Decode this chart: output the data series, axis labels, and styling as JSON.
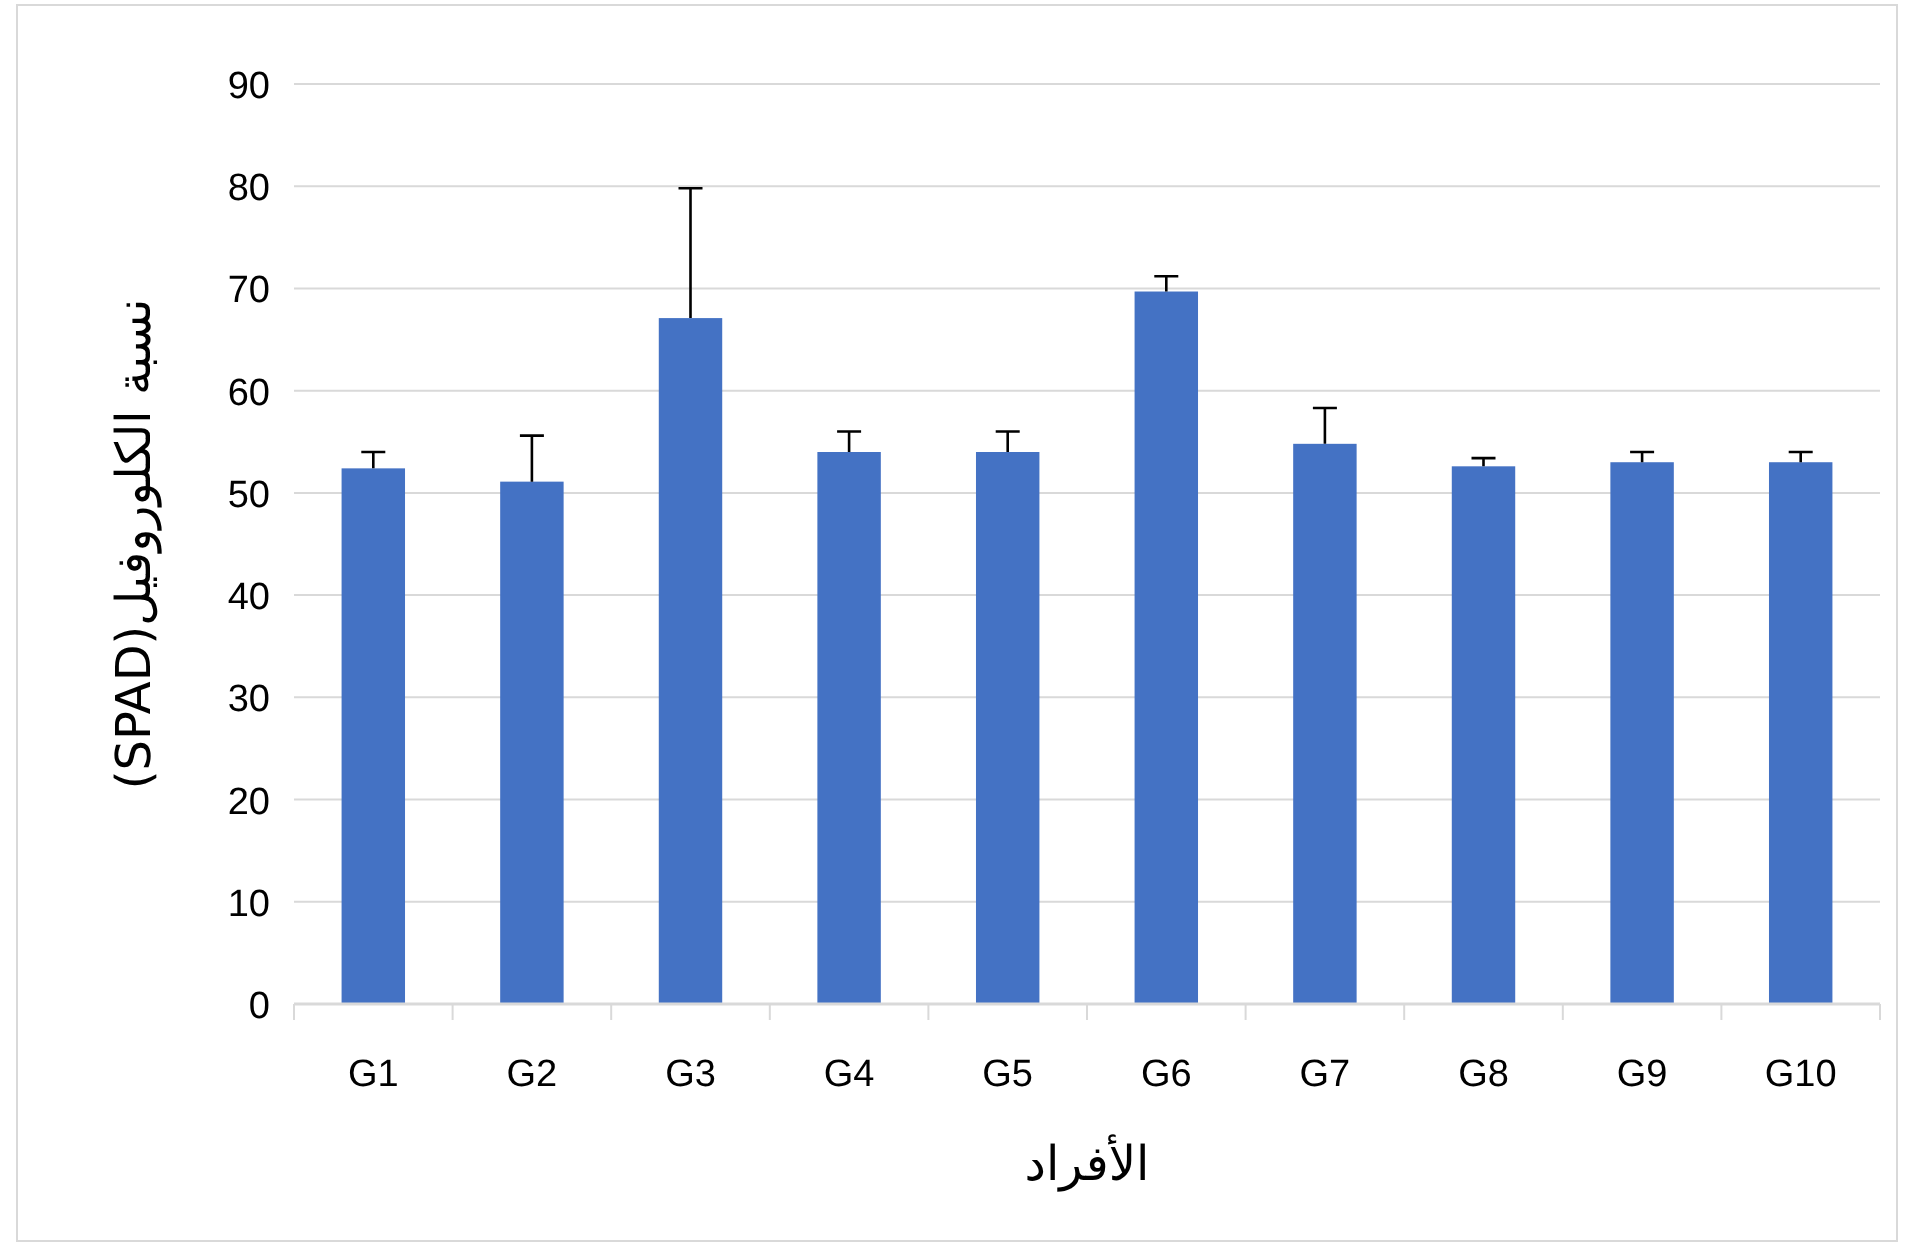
{
  "chart_data": {
    "type": "bar",
    "xlabel": "الأفراد",
    "ylabel": "نسبة الكلوروفيل(SPAD)",
    "categories": [
      "G1",
      "G2",
      "G3",
      "G4",
      "G5",
      "G6",
      "G7",
      "G8",
      "G9",
      "G10"
    ],
    "values": [
      52.4,
      51.1,
      67.1,
      54.0,
      54.0,
      69.7,
      54.8,
      52.6,
      53.0,
      53.0
    ],
    "errors": [
      [
        52.4,
        54.0
      ],
      [
        51.1,
        55.6
      ],
      [
        67.1,
        79.8
      ],
      [
        54.0,
        56.0
      ],
      [
        54.0,
        56.0
      ],
      [
        69.7,
        71.2
      ],
      [
        54.8,
        58.3
      ],
      [
        52.6,
        53.4
      ],
      [
        53.0,
        54.0
      ],
      [
        53.0,
        54.0
      ]
    ],
    "color": "#4472c4",
    "ylim": [
      0,
      90
    ],
    "yticks": [
      0,
      10,
      20,
      30,
      40,
      50,
      60,
      70,
      80,
      90
    ],
    "grid": "y"
  }
}
